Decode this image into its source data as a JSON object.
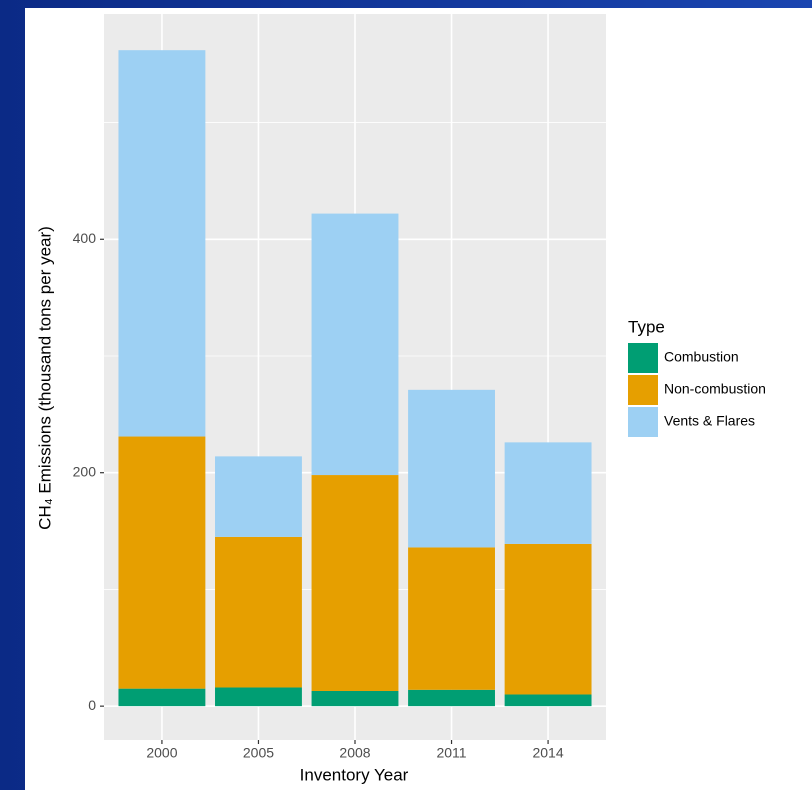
{
  "chart_data": {
    "type": "stacked_bar",
    "x_label": "Inventory Year",
    "y_label": "CH₄ Emissions (thousand tons per year)",
    "legend_title": "Type",
    "legend_position": "right",
    "categories": [
      "2000",
      "2005",
      "2008",
      "2011",
      "2014"
    ],
    "series": [
      {
        "name": "Combustion",
        "color": "#009E73",
        "values": [
          15,
          16,
          13,
          14,
          10
        ]
      },
      {
        "name": "Non-combustion",
        "color": "#E69F00",
        "values": [
          216,
          129,
          185,
          122,
          129
        ]
      },
      {
        "name": "Vents & Flares",
        "color": "#9DD0F3",
        "values": [
          331,
          69,
          224,
          135,
          87
        ]
      }
    ],
    "ylim": [
      -29,
      593
    ],
    "yticks": [
      0,
      200,
      400
    ],
    "minor_yticks": [
      100,
      300,
      500
    ],
    "grid": true
  }
}
